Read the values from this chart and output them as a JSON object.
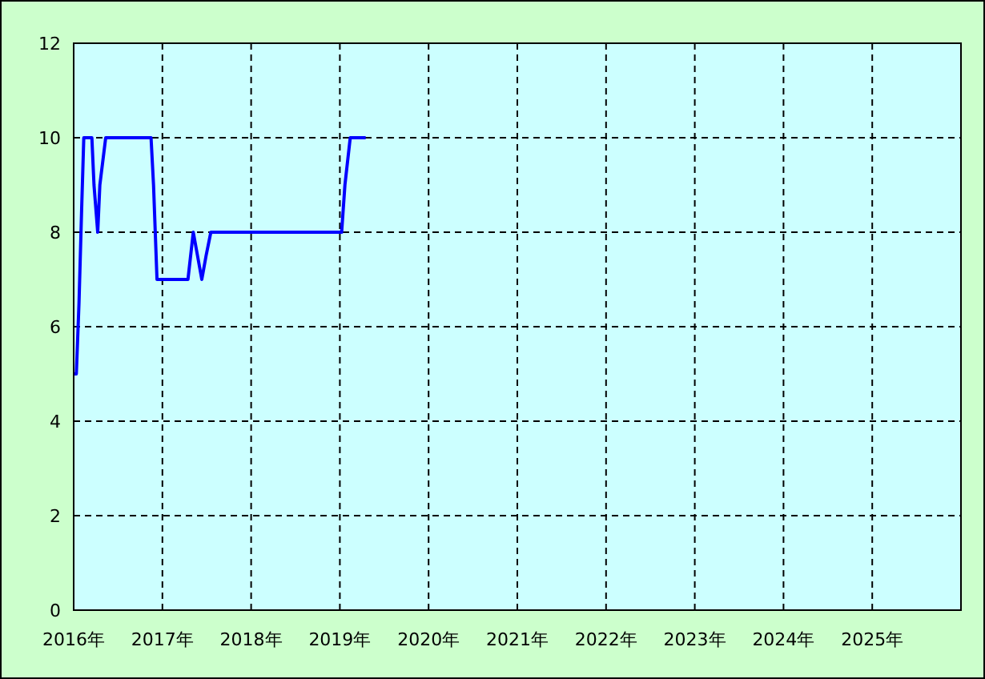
{
  "chart_data": {
    "type": "line",
    "x": [
      2016.0,
      2016.03,
      2016.06,
      2016.09,
      2016.114,
      2016.205,
      2016.229,
      2016.271,
      2016.295,
      2016.361,
      2016.872,
      2016.9,
      2016.939,
      2017.288,
      2017.318,
      2017.348,
      2017.396,
      2017.444,
      2017.492,
      2017.546,
      2019.02,
      2019.057,
      2019.117,
      2019.291
    ],
    "series": [
      {
        "color": "#0000ff",
        "values": [
          5,
          5,
          6.5,
          8.5,
          10,
          10,
          9,
          8,
          9,
          10,
          10,
          9,
          7,
          7,
          7.5,
          8,
          7.5,
          7,
          7.5,
          8,
          8,
          9,
          10,
          10
        ]
      }
    ],
    "xlim": [
      2016,
      2026
    ],
    "xticks": [
      {
        "value": 2016,
        "label": "2016年"
      },
      {
        "value": 2017,
        "label": "2017年"
      },
      {
        "value": 2018,
        "label": "2018年"
      },
      {
        "value": 2019,
        "label": "2019年"
      },
      {
        "value": 2020,
        "label": "2020年"
      },
      {
        "value": 2021,
        "label": "2021年"
      },
      {
        "value": 2022,
        "label": "2022年"
      },
      {
        "value": 2023,
        "label": "2023年"
      },
      {
        "value": 2024,
        "label": "2024年"
      },
      {
        "value": 2025,
        "label": "2025年"
      }
    ],
    "ylim": [
      0,
      12
    ],
    "yticks": [
      0,
      2,
      4,
      6,
      8,
      10,
      12
    ],
    "grid": true,
    "line_style": "solid",
    "marker": "none"
  }
}
